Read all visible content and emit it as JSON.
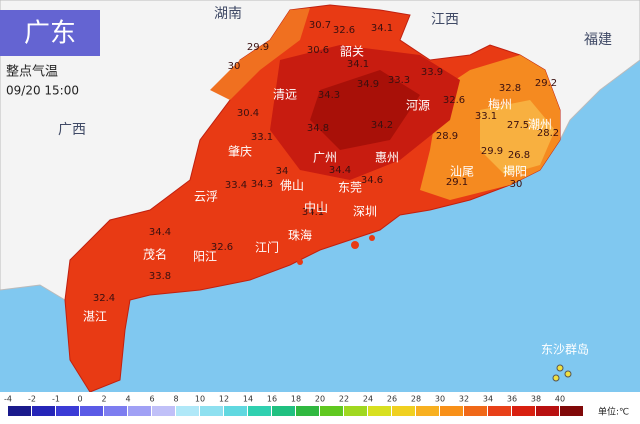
{
  "header": {
    "title": "广东",
    "product": "整点气温",
    "time": "09/20 15:00"
  },
  "regions": [
    "湖南",
    "江西",
    "福建",
    "广西"
  ],
  "cities": [
    "韶关",
    "清远",
    "河源",
    "梅州",
    "潮州",
    "肇庆",
    "广州",
    "惠州",
    "佛山",
    "东莞",
    "云浮",
    "揭阳",
    "中山",
    "深圳",
    "珠海",
    "江门",
    "茂名",
    "阳江",
    "湛江",
    "汕尾",
    "东沙群岛"
  ],
  "temperatures": [
    30.7,
    32.6,
    34.1,
    29.9,
    30,
    30.6,
    34.1,
    33.9,
    32.8,
    29.2,
    34.3,
    34.9,
    33.3,
    32.6,
    33.1,
    27.5,
    30.4,
    33.1,
    34.8,
    34.2,
    28.9,
    29.9,
    26.8,
    28.2,
    33.4,
    34,
    34.3,
    34.4,
    34.6,
    29.1,
    30,
    34.1,
    34.4,
    32.6,
    33.8,
    32.4
  ],
  "legend": {
    "ticks": [
      -4,
      -2,
      -1,
      0,
      2,
      4,
      6,
      8,
      10,
      12,
      14,
      16,
      18,
      20,
      22,
      24,
      26,
      28,
      30,
      32,
      34,
      36,
      38,
      40
    ],
    "colors": [
      "#1a1a8c",
      "#2525b8",
      "#3b3bd6",
      "#5a5ae6",
      "#7d7df0",
      "#a0a0f5",
      "#c0c0f8",
      "#b0e8f8",
      "#8ee0f0",
      "#60d8e0",
      "#30d0b0",
      "#20c080",
      "#30b840",
      "#60c820",
      "#a0d820",
      "#d8e020",
      "#f0d020",
      "#f8b020",
      "#f89018",
      "#f06818",
      "#e84018",
      "#d82010",
      "#b81010",
      "#800808"
    ],
    "unit": "单位:℃"
  }
}
